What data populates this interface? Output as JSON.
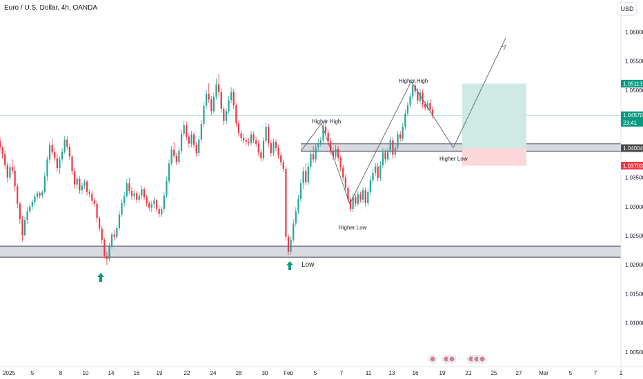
{
  "header": {
    "title": "Euro / U.S. Dollar, 4h, OANDA"
  },
  "currency_button": {
    "label": "USD"
  },
  "colors": {
    "up": "#26a69a",
    "down": "#f23645",
    "zone": "#787b86",
    "target_fill": "#cfeae4",
    "stop_fill": "#fbd7d9",
    "tag_target": "#089981",
    "tag_stop": "#f23645",
    "tag_level": "#4a4a4a"
  },
  "chart_data": {
    "type": "candlestick",
    "title": "Euro / U.S. Dollar, 4h, OANDA",
    "ylim": [
      1.0025,
      1.0655
    ],
    "y_ticks": [
      "1.06000",
      "1.05500",
      "1.05000",
      "1.03500",
      "1.03000",
      "1.02500",
      "1.02000",
      "1.01500",
      "1.01000",
      "1.00500"
    ],
    "x_ticks": [
      "2025",
      "5",
      "8",
      "10",
      "14",
      "16",
      "19",
      "22",
      "24",
      "28",
      "30",
      "Feb",
      "5",
      "7",
      "11",
      "13",
      "16",
      "19",
      "21",
      "25",
      "27",
      "Mar",
      "5",
      "7",
      "1"
    ],
    "price_tags": [
      {
        "kind": "target",
        "value": 1.05113,
        "label": "1.05113"
      },
      {
        "kind": "current",
        "value": 1.0457,
        "label": "1.04570",
        "countdown": "23:41"
      },
      {
        "kind": "level",
        "value": 1.04004,
        "label": "1.04004"
      },
      {
        "kind": "stop",
        "value": 1.03703,
        "label": "1.03703"
      }
    ],
    "zones": [
      {
        "name": "support",
        "low": 1.0213,
        "high": 1.0232
      },
      {
        "name": "resistance",
        "low": 1.0395,
        "high": 1.0408
      }
    ],
    "position": {
      "entry": 1.04004,
      "target": 1.05113,
      "stop": 1.03703
    },
    "annotations": [
      "Higher High",
      "Higher Low",
      "Higher High",
      "Higher Low",
      "Low"
    ],
    "candles": [
      [
        1.0413,
        1.042,
        1.0395,
        1.0401
      ],
      [
        1.0401,
        1.0404,
        1.0382,
        1.039
      ],
      [
        1.039,
        1.0396,
        1.0365,
        1.0371
      ],
      [
        1.0371,
        1.0376,
        1.0342,
        1.035
      ],
      [
        1.035,
        1.0375,
        1.0345,
        1.0368
      ],
      [
        1.0368,
        1.0381,
        1.0355,
        1.0362
      ],
      [
        1.0362,
        1.037,
        1.0327,
        1.0335
      ],
      [
        1.0335,
        1.034,
        1.0297,
        1.0305
      ],
      [
        1.0305,
        1.0308,
        1.027,
        1.0278
      ],
      [
        1.0278,
        1.0284,
        1.024,
        1.0251
      ],
      [
        1.0251,
        1.0282,
        1.0248,
        1.0277
      ],
      [
        1.0277,
        1.0299,
        1.027,
        1.0292
      ],
      [
        1.0292,
        1.0305,
        1.0287,
        1.03
      ],
      [
        1.03,
        1.0312,
        1.0294,
        1.0308
      ],
      [
        1.0308,
        1.0322,
        1.0302,
        1.0317
      ],
      [
        1.0317,
        1.0327,
        1.0311,
        1.0323
      ],
      [
        1.0323,
        1.0326,
        1.0314,
        1.0319
      ],
      [
        1.0319,
        1.0328,
        1.0314,
        1.0325
      ],
      [
        1.0325,
        1.0359,
        1.0322,
        1.0352
      ],
      [
        1.0352,
        1.0386,
        1.0344,
        1.0381
      ],
      [
        1.0381,
        1.0412,
        1.0374,
        1.0406
      ],
      [
        1.0406,
        1.0417,
        1.0389,
        1.0393
      ],
      [
        1.0393,
        1.0401,
        1.0378,
        1.0383
      ],
      [
        1.0383,
        1.0391,
        1.036,
        1.0366
      ],
      [
        1.0366,
        1.0386,
        1.0356,
        1.0381
      ],
      [
        1.0381,
        1.04,
        1.0376,
        1.0394
      ],
      [
        1.0394,
        1.0421,
        1.039,
        1.0415
      ],
      [
        1.0415,
        1.0421,
        1.0397,
        1.0403
      ],
      [
        1.0403,
        1.0408,
        1.038,
        1.0386
      ],
      [
        1.0386,
        1.0389,
        1.0354,
        1.0361
      ],
      [
        1.0361,
        1.0366,
        1.0331,
        1.0338
      ],
      [
        1.0338,
        1.0353,
        1.0331,
        1.0348
      ],
      [
        1.0348,
        1.0352,
        1.0322,
        1.0328
      ],
      [
        1.0328,
        1.0341,
        1.032,
        1.0336
      ],
      [
        1.0336,
        1.0347,
        1.033,
        1.0343
      ],
      [
        1.0343,
        1.0346,
        1.0319,
        1.0325
      ],
      [
        1.0325,
        1.033,
        1.0316,
        1.0322
      ],
      [
        1.0322,
        1.0327,
        1.0304,
        1.031
      ],
      [
        1.031,
        1.0315,
        1.03,
        1.0305
      ],
      [
        1.0305,
        1.031,
        1.0272,
        1.028
      ],
      [
        1.028,
        1.0284,
        1.0257,
        1.0262
      ],
      [
        1.0262,
        1.0267,
        1.0236,
        1.0243
      ],
      [
        1.0243,
        1.0246,
        1.0211,
        1.0215
      ],
      [
        1.0215,
        1.0222,
        1.0199,
        1.021
      ],
      [
        1.021,
        1.0237,
        1.0206,
        1.0231
      ],
      [
        1.0231,
        1.0257,
        1.0227,
        1.0252
      ],
      [
        1.0252,
        1.026,
        1.0241,
        1.0248
      ],
      [
        1.0248,
        1.0268,
        1.0244,
        1.0263
      ],
      [
        1.0263,
        1.0292,
        1.0259,
        1.0286
      ],
      [
        1.0286,
        1.0312,
        1.0282,
        1.0306
      ],
      [
        1.0306,
        1.0325,
        1.03,
        1.0318
      ],
      [
        1.0318,
        1.0347,
        1.0314,
        1.034
      ],
      [
        1.034,
        1.035,
        1.0322,
        1.0327
      ],
      [
        1.0327,
        1.0334,
        1.0311,
        1.0318
      ],
      [
        1.0318,
        1.0328,
        1.0312,
        1.0323
      ],
      [
        1.0323,
        1.0327,
        1.0306,
        1.0312
      ],
      [
        1.0312,
        1.0325,
        1.0307,
        1.0319
      ],
      [
        1.0319,
        1.0336,
        1.0313,
        1.033
      ],
      [
        1.033,
        1.0334,
        1.0311,
        1.0316
      ],
      [
        1.0316,
        1.032,
        1.03,
        1.0306
      ],
      [
        1.0306,
        1.031,
        1.0293,
        1.0298
      ],
      [
        1.0298,
        1.031,
        1.029,
        1.0304
      ],
      [
        1.0304,
        1.0316,
        1.0298,
        1.0311
      ],
      [
        1.0311,
        1.0313,
        1.0291,
        1.0296
      ],
      [
        1.0296,
        1.0302,
        1.0281,
        1.0287
      ],
      [
        1.0287,
        1.03,
        1.0282,
        1.0296
      ],
      [
        1.0296,
        1.0325,
        1.029,
        1.0319
      ],
      [
        1.0319,
        1.0351,
        1.0315,
        1.0344
      ],
      [
        1.0344,
        1.0381,
        1.034,
        1.0374
      ],
      [
        1.0374,
        1.0404,
        1.037,
        1.0398
      ],
      [
        1.0398,
        1.0411,
        1.0383,
        1.0387
      ],
      [
        1.0387,
        1.0392,
        1.0371,
        1.0377
      ],
      [
        1.0377,
        1.0402,
        1.0372,
        1.0396
      ],
      [
        1.0396,
        1.0433,
        1.039,
        1.0425
      ],
      [
        1.0425,
        1.0447,
        1.042,
        1.044
      ],
      [
        1.044,
        1.0446,
        1.0414,
        1.042
      ],
      [
        1.042,
        1.0426,
        1.0401,
        1.0408
      ],
      [
        1.0408,
        1.043,
        1.0402,
        1.0424
      ],
      [
        1.0424,
        1.0428,
        1.04,
        1.0406
      ],
      [
        1.0406,
        1.0411,
        1.0386,
        1.0392
      ],
      [
        1.0392,
        1.0422,
        1.0387,
        1.0415
      ],
      [
        1.0415,
        1.0449,
        1.041,
        1.0442
      ],
      [
        1.0442,
        1.048,
        1.0437,
        1.0473
      ],
      [
        1.0473,
        1.0501,
        1.0468,
        1.0494
      ],
      [
        1.0494,
        1.0512,
        1.0478,
        1.0484
      ],
      [
        1.0484,
        1.049,
        1.0457,
        1.0464
      ],
      [
        1.0464,
        1.0496,
        1.0459,
        1.0489
      ],
      [
        1.0489,
        1.052,
        1.0484,
        1.051
      ],
      [
        1.051,
        1.0528,
        1.0489,
        1.0497
      ],
      [
        1.0497,
        1.0503,
        1.0461,
        1.0468
      ],
      [
        1.0468,
        1.0472,
        1.044,
        1.0447
      ],
      [
        1.0447,
        1.0469,
        1.0441,
        1.0464
      ],
      [
        1.0464,
        1.049,
        1.0459,
        1.0483
      ],
      [
        1.0483,
        1.0505,
        1.0478,
        1.0497
      ],
      [
        1.0497,
        1.0502,
        1.0468,
        1.0474
      ],
      [
        1.0474,
        1.0478,
        1.0437,
        1.0443
      ],
      [
        1.0443,
        1.0448,
        1.042,
        1.0426
      ],
      [
        1.0426,
        1.0431,
        1.0412,
        1.0418
      ],
      [
        1.0418,
        1.0425,
        1.0408,
        1.0414
      ],
      [
        1.0414,
        1.0419,
        1.0405,
        1.0411
      ],
      [
        1.0411,
        1.0418,
        1.0404,
        1.0409
      ],
      [
        1.0409,
        1.043,
        1.0405,
        1.0424
      ],
      [
        1.0424,
        1.0429,
        1.0409,
        1.0414
      ],
      [
        1.0414,
        1.0419,
        1.0403,
        1.0408
      ],
      [
        1.0408,
        1.0414,
        1.0387,
        1.0393
      ],
      [
        1.0393,
        1.0398,
        1.0377,
        1.0383
      ],
      [
        1.0383,
        1.0419,
        1.0379,
        1.0413
      ],
      [
        1.0413,
        1.0444,
        1.0408,
        1.0437
      ],
      [
        1.0437,
        1.0442,
        1.0402,
        1.0409
      ],
      [
        1.0409,
        1.0414,
        1.0386,
        1.0392
      ],
      [
        1.0392,
        1.0417,
        1.0387,
        1.0411
      ],
      [
        1.0411,
        1.0416,
        1.0395,
        1.0401
      ],
      [
        1.0401,
        1.0406,
        1.0382,
        1.0388
      ],
      [
        1.0388,
        1.0393,
        1.037,
        1.0376
      ],
      [
        1.0376,
        1.0381,
        1.0359,
        1.0365
      ],
      [
        1.0365,
        1.037,
        1.0241,
        1.0248
      ],
      [
        1.0248,
        1.0253,
        1.0216,
        1.0222
      ],
      [
        1.0222,
        1.0249,
        1.0217,
        1.0243
      ],
      [
        1.0243,
        1.0278,
        1.0238,
        1.0271
      ],
      [
        1.0271,
        1.0299,
        1.0266,
        1.0292
      ],
      [
        1.0292,
        1.032,
        1.0287,
        1.0313
      ],
      [
        1.0313,
        1.0347,
        1.0308,
        1.034
      ],
      [
        1.034,
        1.0368,
        1.033,
        1.0361
      ],
      [
        1.0361,
        1.0374,
        1.0336,
        1.0342
      ],
      [
        1.0342,
        1.0376,
        1.0337,
        1.0369
      ],
      [
        1.0369,
        1.0397,
        1.0364,
        1.039
      ],
      [
        1.039,
        1.0404,
        1.0375,
        1.0381
      ],
      [
        1.0381,
        1.0409,
        1.0376,
        1.0402
      ],
      [
        1.0402,
        1.0416,
        1.0396,
        1.0409
      ],
      [
        1.0409,
        1.042,
        1.0403,
        1.0414
      ],
      [
        1.0414,
        1.0445,
        1.0409,
        1.0437
      ],
      [
        1.0437,
        1.0451,
        1.0421,
        1.0427
      ],
      [
        1.0427,
        1.0432,
        1.0405,
        1.0412
      ],
      [
        1.0412,
        1.0417,
        1.0389,
        1.0395
      ],
      [
        1.0395,
        1.0401,
        1.038,
        1.0386
      ],
      [
        1.0386,
        1.0405,
        1.0381,
        1.0399
      ],
      [
        1.0399,
        1.0404,
        1.0378,
        1.0384
      ],
      [
        1.0384,
        1.0388,
        1.0361,
        1.0367
      ],
      [
        1.0367,
        1.0372,
        1.0344,
        1.035
      ],
      [
        1.035,
        1.0355,
        1.0326,
        1.0332
      ],
      [
        1.0332,
        1.0336,
        1.0306,
        1.0312
      ],
      [
        1.0312,
        1.0316,
        1.0291,
        1.0296
      ],
      [
        1.0296,
        1.0322,
        1.0291,
        1.0316
      ],
      [
        1.0316,
        1.0321,
        1.03,
        1.0305
      ],
      [
        1.0305,
        1.0327,
        1.0301,
        1.0321
      ],
      [
        1.0321,
        1.0326,
        1.0307,
        1.0312
      ],
      [
        1.0312,
        1.0334,
        1.0307,
        1.0328
      ],
      [
        1.0328,
        1.0333,
        1.03,
        1.0306
      ],
      [
        1.0306,
        1.0331,
        1.0301,
        1.0325
      ],
      [
        1.0325,
        1.0352,
        1.032,
        1.0345
      ],
      [
        1.0345,
        1.0364,
        1.034,
        1.0358
      ],
      [
        1.0358,
        1.0375,
        1.0353,
        1.0369
      ],
      [
        1.0369,
        1.0375,
        1.0343,
        1.0349
      ],
      [
        1.0349,
        1.0378,
        1.0344,
        1.0371
      ],
      [
        1.0371,
        1.04,
        1.0366,
        1.0393
      ],
      [
        1.0393,
        1.0398,
        1.0375,
        1.0381
      ],
      [
        1.0381,
        1.0401,
        1.0377,
        1.0396
      ],
      [
        1.0396,
        1.042,
        1.0391,
        1.0414
      ],
      [
        1.0414,
        1.0419,
        1.0382,
        1.0389
      ],
      [
        1.0389,
        1.0406,
        1.0384,
        1.0401
      ],
      [
        1.0401,
        1.043,
        1.0396,
        1.0424
      ],
      [
        1.0424,
        1.043,
        1.0411,
        1.0417
      ],
      [
        1.0417,
        1.0444,
        1.0412,
        1.0437
      ],
      [
        1.0437,
        1.0467,
        1.0432,
        1.046
      ],
      [
        1.046,
        1.048,
        1.0455,
        1.0474
      ],
      [
        1.0474,
        1.0495,
        1.0469,
        1.0489
      ],
      [
        1.0489,
        1.0514,
        1.0484,
        1.0508
      ],
      [
        1.0508,
        1.0516,
        1.0492,
        1.0498
      ],
      [
        1.0498,
        1.0504,
        1.0476,
        1.0482
      ],
      [
        1.0482,
        1.0502,
        1.0477,
        1.0496
      ],
      [
        1.0496,
        1.0501,
        1.047,
        1.0476
      ],
      [
        1.0476,
        1.0482,
        1.0465,
        1.047
      ],
      [
        1.047,
        1.0483,
        1.0465,
        1.0478
      ],
      [
        1.0478,
        1.0484,
        1.0461,
        1.0466
      ],
      [
        1.0466,
        1.0472,
        1.0451,
        1.0457
      ]
    ]
  }
}
